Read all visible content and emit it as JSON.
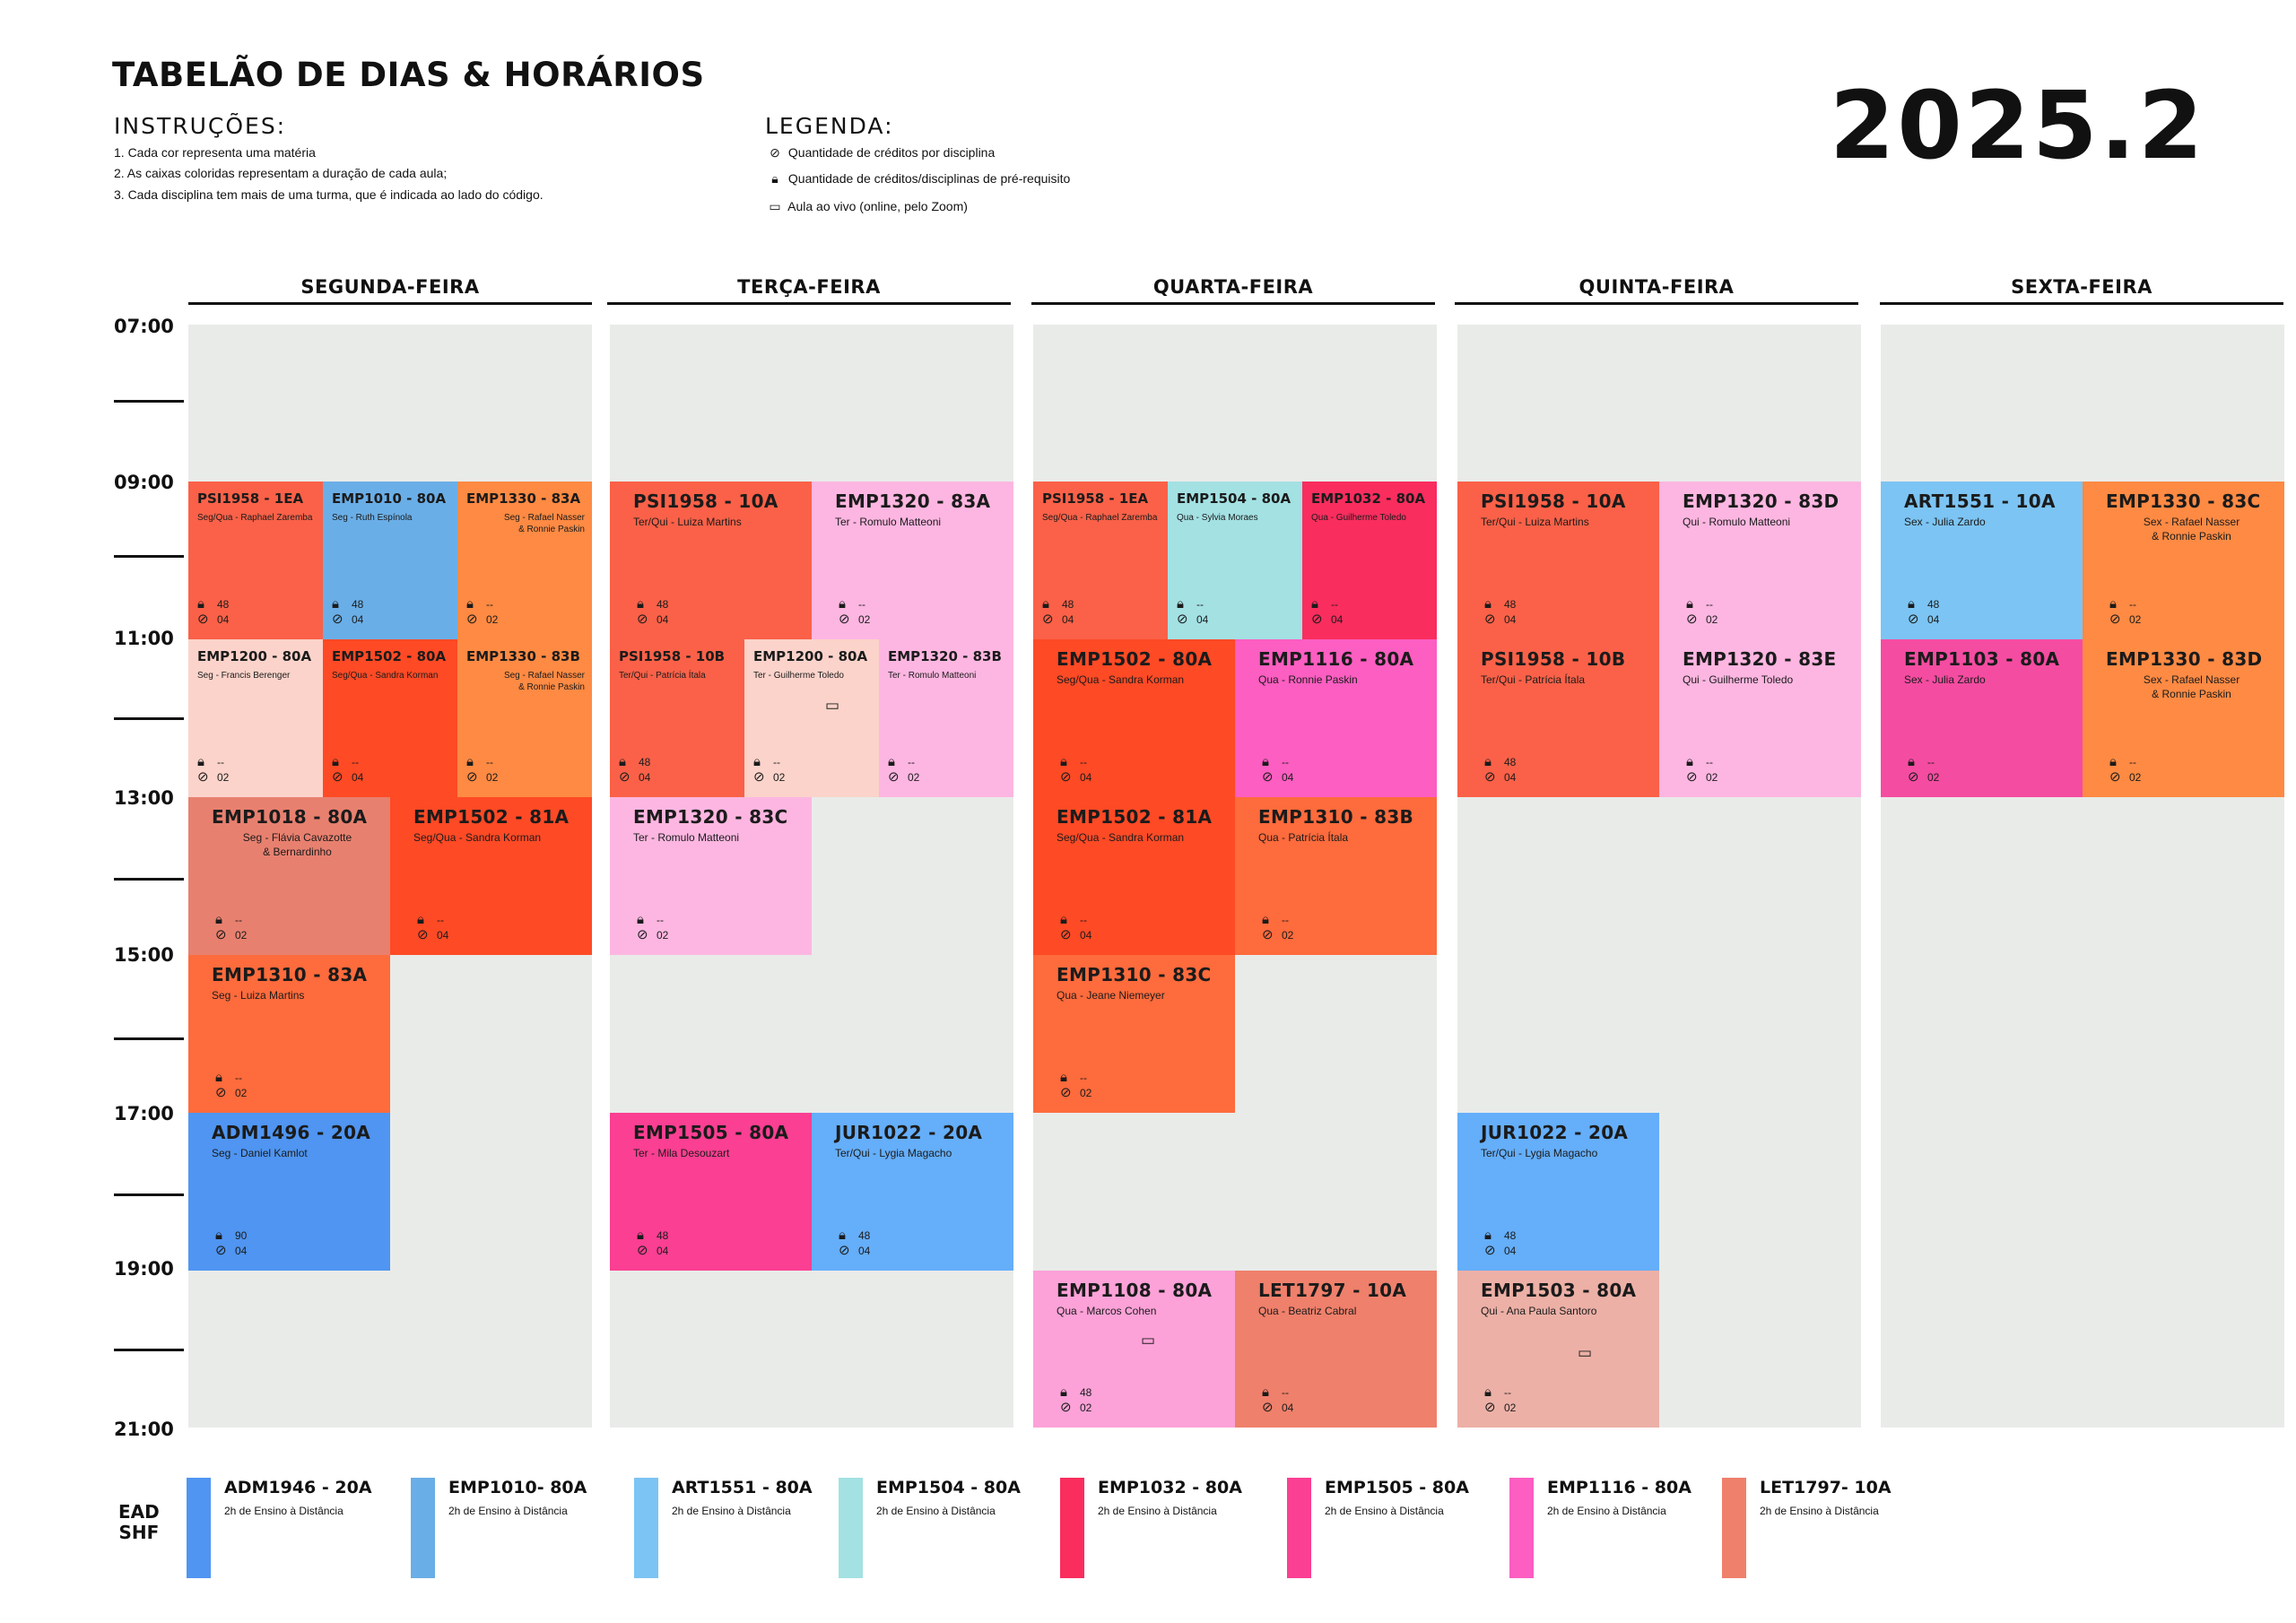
{
  "header": {
    "title": "TABELÃO DE DIAS & HORÁRIOS",
    "year": "2025.2"
  },
  "instructions": {
    "heading": "INSTRUÇÕES:",
    "items": [
      "1. Cada cor representa uma matéria",
      "2. As caixas coloridas representam a duração de cada aula;",
      "3. Cada disciplina tem mais de uma turma, que é indicada ao lado do código."
    ]
  },
  "legend": {
    "heading": "LEGENDA:",
    "items": [
      {
        "icon": "clock-check-icon",
        "text": "Quantidade de créditos por disciplina"
      },
      {
        "icon": "lock-icon",
        "text": "Quantidade de créditos/disciplinas de pré-requisito"
      },
      {
        "icon": "laptop-icon",
        "text": "Aula ao vivo (online, pelo Zoom)"
      }
    ]
  },
  "days": [
    "SEGUNDA-FEIRA",
    "TERÇA-FEIRA",
    "QUARTA-FEIRA",
    "QUINTA-FEIRA",
    "SEXTA-FEIRA"
  ],
  "times": [
    "07:00",
    "09:00",
    "11:00",
    "13:00",
    "15:00",
    "17:00",
    "19:00",
    "21:00"
  ],
  "colors": {
    "grid_background": "#e9ebe9",
    "psi1958": "#fa6148",
    "emp1010": "#6aaee7",
    "emp1330": "#fe8a43",
    "emp1200": "#fbd3ca",
    "emp1502": "#fe4a25",
    "emp1018": "#e8806f",
    "emp1310": "#fe6b3c",
    "adm1496": "#4f95f1",
    "emp1320": "#fdb6e1",
    "emp1505": "#fb3f92",
    "jur1022": "#65aef9",
    "emp1504": "#a3e1e3",
    "emp1032": "#f92d5e",
    "emp1116": "#fc5ec1",
    "emp1108": "#fca2d8",
    "let1797": "#ef806b",
    "emp1503": "#ecb0a6",
    "art1551": "#7cc4f3",
    "emp1103": "#f44ca1"
  },
  "schedule": {
    "segunda": [
      {
        "code": "PSI1958 - 1EA",
        "prof": "Seg/Qua - Raphael Zaremba",
        "lock": "48",
        "credits": "04"
      },
      {
        "code": "EMP1010 - 80A",
        "prof": "Seg - Ruth Espínola",
        "lock": "48",
        "credits": "04"
      },
      {
        "code": "EMP1330 - 83A",
        "prof": "Seg - Rafael Nasser\n& Ronnie Paskin",
        "lock": "--",
        "credits": "02"
      },
      {
        "code": "EMP1200 - 80A",
        "prof": "Seg - Francis Berenger",
        "lock": "--",
        "credits": "02"
      },
      {
        "code": "EMP1502 - 80A",
        "prof": "Seg/Qua - Sandra Korman",
        "lock": "--",
        "credits": "04"
      },
      {
        "code": "EMP1330 - 83B",
        "prof": "Seg - Rafael Nasser\n& Ronnie Paskin",
        "lock": "--",
        "credits": "02"
      },
      {
        "code": "EMP1018 - 80A",
        "prof": "Seg - Flávia Cavazotte\n& Bernardinho",
        "lock": "--",
        "credits": "02"
      },
      {
        "code": "EMP1502 - 81A",
        "prof": "Seg/Qua - Sandra Korman",
        "lock": "--",
        "credits": "04"
      },
      {
        "code": "EMP1310 - 83A",
        "prof": "Seg - Luiza Martins",
        "lock": "--",
        "credits": "02"
      },
      {
        "code": "ADM1496 - 20A",
        "prof": "Seg - Daniel Kamlot",
        "lock": "90",
        "credits": "04"
      }
    ],
    "terca": [
      {
        "code": "PSI1958 - 10A",
        "prof": "Ter/Qui - Luiza Martins",
        "lock": "48",
        "credits": "04"
      },
      {
        "code": "EMP1320 - 83A",
        "prof": "Ter - Romulo Matteoni",
        "lock": "--",
        "credits": "02"
      },
      {
        "code": "PSI1958 - 10B",
        "prof": "Ter/Qui - Patrícia Ítala",
        "lock": "48",
        "credits": "04"
      },
      {
        "code": "EMP1200 - 80A",
        "prof": "Ter - Guilherme Toledo",
        "lock": "--",
        "credits": "02",
        "live": true
      },
      {
        "code": "EMP1320 - 83B",
        "prof": "Ter - Romulo Matteoni",
        "lock": "--",
        "credits": "02"
      },
      {
        "code": "EMP1320 - 83C",
        "prof": "Ter - Romulo Matteoni",
        "lock": "--",
        "credits": "02"
      },
      {
        "code": "EMP1505 - 80A",
        "prof": "Ter - Mila Desouzart",
        "lock": "48",
        "credits": "04"
      },
      {
        "code": "JUR1022 - 20A",
        "prof": "Ter/Qui - Lygia Magacho",
        "lock": "48",
        "credits": "04"
      }
    ],
    "quarta": [
      {
        "code": "PSI1958 - 1EA",
        "prof": "Seg/Qua - Raphael Zaremba",
        "lock": "48",
        "credits": "04"
      },
      {
        "code": "EMP1504 - 80A",
        "prof": "Qua - Sylvia Moraes",
        "lock": "--",
        "credits": "04"
      },
      {
        "code": "EMP1032 - 80A",
        "prof": "Qua - Guilherme Toledo",
        "lock": "--",
        "credits": "04"
      },
      {
        "code": "EMP1502 - 80A",
        "prof": "Seg/Qua - Sandra Korman",
        "lock": "--",
        "credits": "04"
      },
      {
        "code": "EMP1116 - 80A",
        "prof": "Qua - Ronnie Paskin",
        "lock": "--",
        "credits": "04"
      },
      {
        "code": "EMP1502 - 81A",
        "prof": "Seg/Qua - Sandra Korman",
        "lock": "--",
        "credits": "04"
      },
      {
        "code": "EMP1310 - 83B",
        "prof": "Qua - Patrícia Ítala",
        "lock": "--",
        "credits": "02"
      },
      {
        "code": "EMP1310 - 83C",
        "prof": "Qua - Jeane Niemeyer",
        "lock": "--",
        "credits": "02"
      },
      {
        "code": "EMP1108 - 80A",
        "prof": "Qua - Marcos Cohen",
        "lock": "48",
        "credits": "02",
        "live": true
      },
      {
        "code": "LET1797 - 10A",
        "prof": "Qua - Beatriz Cabral",
        "lock": "--",
        "credits": "04"
      }
    ],
    "quinta": [
      {
        "code": "PSI1958 - 10A",
        "prof": "Ter/Qui - Luiza Martins",
        "lock": "48",
        "credits": "04"
      },
      {
        "code": "EMP1320 - 83D",
        "prof": "Qui - Romulo Matteoni",
        "lock": "--",
        "credits": "02"
      },
      {
        "code": "PSI1958 - 10B",
        "prof": "Ter/Qui - Patrícia Ítala",
        "lock": "48",
        "credits": "04"
      },
      {
        "code": "EMP1320 - 83E",
        "prof": "Qui - Guilherme Toledo",
        "lock": "--",
        "credits": "02"
      },
      {
        "code": "JUR1022 - 20A",
        "prof": "Ter/Qui - Lygia Magacho",
        "lock": "48",
        "credits": "04"
      },
      {
        "code": "EMP1503 - 80A",
        "prof": "Qui - Ana Paula Santoro",
        "lock": "--",
        "credits": "02",
        "live": true
      }
    ],
    "sexta": [
      {
        "code": "ART1551 - 10A",
        "prof": "Sex - Julia Zardo",
        "lock": "48",
        "credits": "04"
      },
      {
        "code": "EMP1330 - 83C",
        "prof": "Sex - Rafael Nasser\n& Ronnie Paskin",
        "lock": "--",
        "credits": "02"
      },
      {
        "code": "EMP1103 - 80A",
        "prof": "Sex - Julia Zardo",
        "lock": "--",
        "credits": "02"
      },
      {
        "code": "EMP1330 - 83D",
        "prof": "Sex - Rafael Nasser\n& Ronnie Paskin",
        "lock": "--",
        "credits": "02"
      }
    ]
  },
  "ead": {
    "label": "EAD\nSHF",
    "items": [
      {
        "code": "ADM1946 - 20A",
        "desc": "2h de Ensino à Distância",
        "color": "#4f95f1"
      },
      {
        "code": "EMP1010- 80A",
        "desc": "2h de Ensino à Distância",
        "color": "#6aaee7"
      },
      {
        "code": "ART1551 - 80A",
        "desc": "2h de Ensino à Distância",
        "color": "#7cc4f3"
      },
      {
        "code": "EMP1504 - 80A",
        "desc": "2h de Ensino à Distância",
        "color": "#a3e1e3"
      },
      {
        "code": "EMP1032 - 80A",
        "desc": "2h de Ensino à Distância",
        "color": "#f92d5e"
      },
      {
        "code": "EMP1505 - 80A",
        "desc": "2h de Ensino à Distância",
        "color": "#fb3f92"
      },
      {
        "code": "EMP1116 - 80A",
        "desc": "2h de Ensino à Distância",
        "color": "#fc5ec1"
      },
      {
        "code": "LET1797- 10A",
        "desc": "2h de Ensino à Distância",
        "color": "#ef806b"
      }
    ]
  }
}
